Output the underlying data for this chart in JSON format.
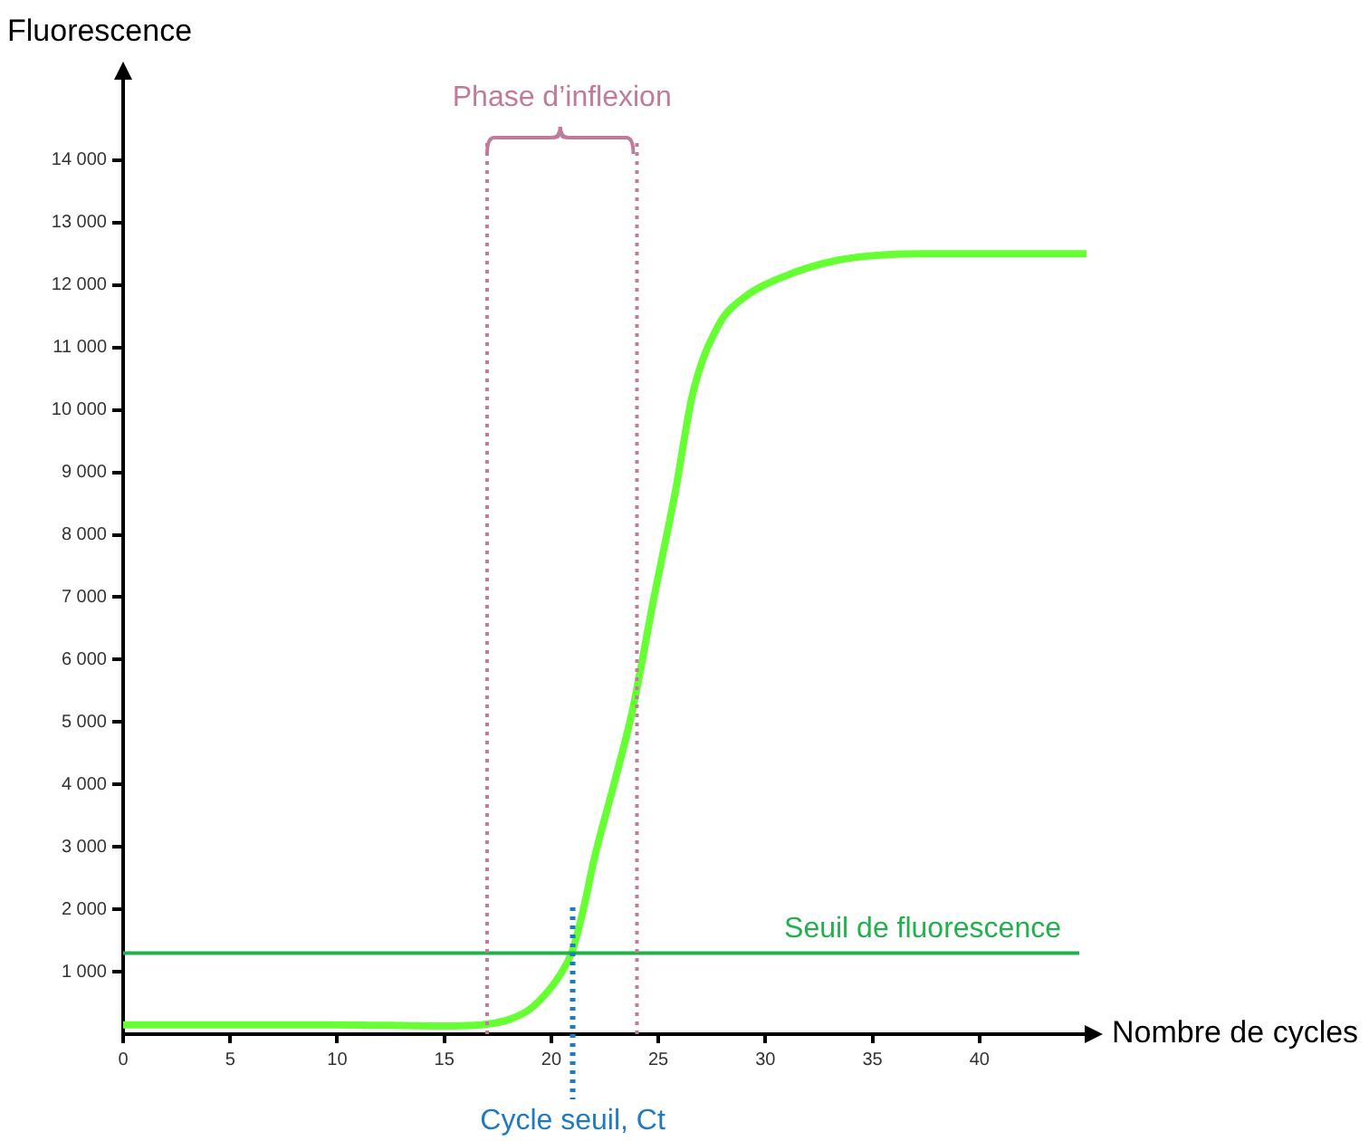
{
  "chart_data": {
    "type": "line",
    "xlabel": "Nombre de cycles",
    "ylabel": "Fluorescence",
    "x": [
      0,
      5,
      10,
      15,
      17,
      18,
      19,
      20,
      20.5,
      21,
      21.5,
      22,
      23,
      23.8,
      24.8,
      25.8,
      26.6,
      27.8,
      29,
      30.6,
      33.4,
      37.6,
      45
    ],
    "series": [
      {
        "color": "#66ff33",
        "values": [
          150,
          150,
          150,
          130,
          160,
          230,
          400,
          750,
          1000,
          1350,
          2000,
          2800,
          4100,
          5200,
          7000,
          8700,
          10250,
          11350,
          11800,
          12100,
          12400,
          12500,
          12500
        ]
      }
    ],
    "xlim": [
      0,
      45
    ],
    "xticks": [
      0,
      5,
      10,
      15,
      20,
      25,
      30,
      35,
      40
    ],
    "ylim": [
      0,
      15000
    ],
    "yticks": [
      {
        "value": 1000,
        "label": "1 000"
      },
      {
        "value": 2000,
        "label": "2 000"
      },
      {
        "value": 3000,
        "label": "3 000"
      },
      {
        "value": 4000,
        "label": "4 000"
      },
      {
        "value": 5000,
        "label": "5 000"
      },
      {
        "value": 6000,
        "label": "6 000"
      },
      {
        "value": 7000,
        "label": "7 000"
      },
      {
        "value": 8000,
        "label": "8 000"
      },
      {
        "value": 9000,
        "label": "9 000"
      },
      {
        "value": 10000,
        "label": "10 000"
      },
      {
        "value": 11000,
        "label": "11 000"
      },
      {
        "value": 12000,
        "label": "12 000"
      },
      {
        "value": 13000,
        "label": "13 000"
      },
      {
        "value": 14000,
        "label": "14 000"
      }
    ],
    "ref_lines": [
      {
        "axis": "y",
        "value": 1300,
        "label": "Seuil de fluorescence",
        "color": "#22b04c",
        "line_style": "solid"
      },
      {
        "axis": "x",
        "value": 21,
        "label": "Cycle seuil, Ct",
        "color": "#1f7ac4",
        "line_style": "dotted"
      },
      {
        "axis": "x",
        "value": 17,
        "color": "#c07a9c",
        "line_style": "dotted"
      },
      {
        "axis": "x",
        "value": 24,
        "color": "#c07a9c",
        "line_style": "dotted"
      }
    ],
    "annotations": [
      "Phase d’inflexion"
    ],
    "grid": false,
    "legend": false,
    "marker": "none",
    "line_style": "solid"
  }
}
